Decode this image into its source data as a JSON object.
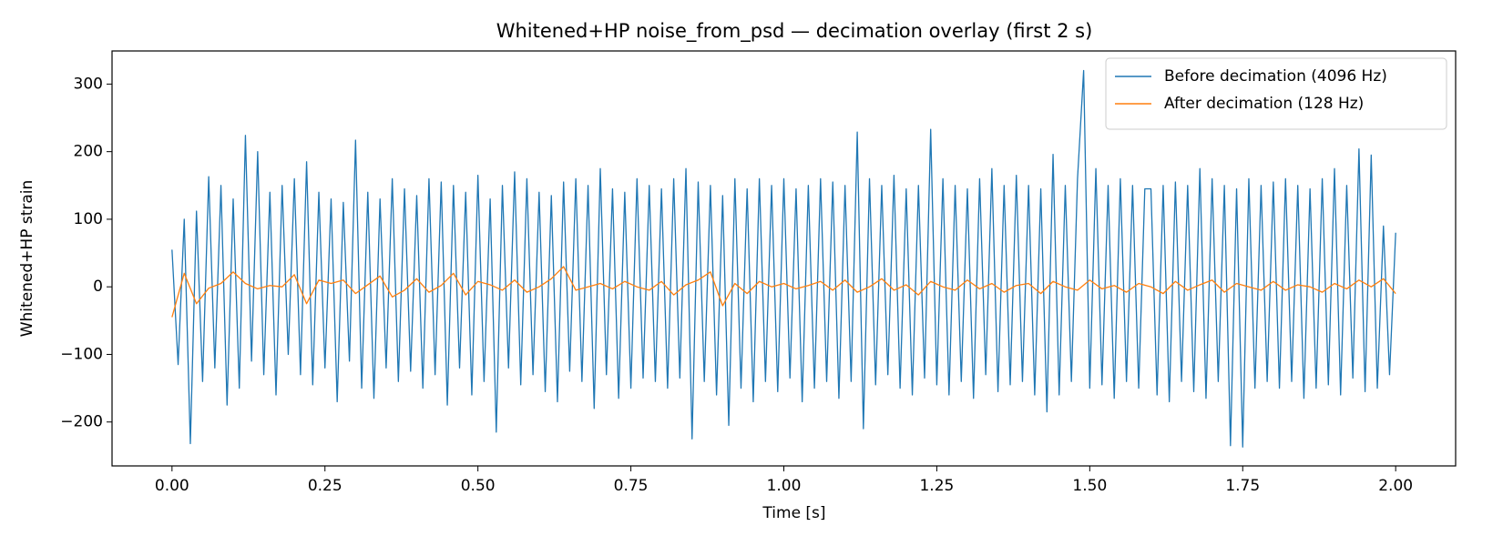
{
  "chart_data": {
    "type": "line",
    "title": "Whitened+HP noise_from_psd — decimation overlay (first 2 s)",
    "xlabel": "Time [s]",
    "ylabel": "Whitened+HP strain",
    "xlim": [
      -0.098,
      2.098
    ],
    "ylim": [
      -265,
      349
    ],
    "xticks": [
      {
        "value": 0,
        "label": "0.00"
      },
      {
        "value": 0.25,
        "label": "0.25"
      },
      {
        "value": 0.5,
        "label": "0.50"
      },
      {
        "value": 0.75,
        "label": "0.75"
      },
      {
        "value": 1,
        "label": "1.00"
      },
      {
        "value": 1.25,
        "label": "1.25"
      },
      {
        "value": 1.5,
        "label": "1.50"
      },
      {
        "value": 1.75,
        "label": "1.75"
      },
      {
        "value": 2,
        "label": "2.00"
      }
    ],
    "yticks": [
      {
        "value": -200,
        "label": "−200"
      },
      {
        "value": -100,
        "label": "−100"
      },
      0,
      100,
      200,
      300
    ],
    "grid": false,
    "legend": "upper right",
    "series": [
      {
        "name": "Before decimation (4096 Hz)",
        "color": "#1f77b4",
        "x": [
          0,
          0.01,
          0.02,
          0.03,
          0.04,
          0.05,
          0.06,
          0.07,
          0.08,
          0.09,
          0.1,
          0.11,
          0.12,
          0.13,
          0.14,
          0.15,
          0.16,
          0.17,
          0.18,
          0.19,
          0.2,
          0.21,
          0.22,
          0.23,
          0.24,
          0.25,
          0.26,
          0.27,
          0.28,
          0.29,
          0.3,
          0.31,
          0.32,
          0.33,
          0.34,
          0.35,
          0.36,
          0.37,
          0.38,
          0.39,
          0.4,
          0.41,
          0.42,
          0.43,
          0.44,
          0.45,
          0.46,
          0.47,
          0.48,
          0.49,
          0.5,
          0.51,
          0.52,
          0.53,
          0.54,
          0.55,
          0.56,
          0.57,
          0.58,
          0.59,
          0.6,
          0.61,
          0.62,
          0.63,
          0.64,
          0.65,
          0.66,
          0.67,
          0.68,
          0.69,
          0.7,
          0.71,
          0.72,
          0.73,
          0.74,
          0.75,
          0.76,
          0.77,
          0.78,
          0.79,
          0.8,
          0.81,
          0.82,
          0.83,
          0.84,
          0.85,
          0.86,
          0.87,
          0.88,
          0.89,
          0.9,
          0.91,
          0.92,
          0.93,
          0.94,
          0.95,
          0.96,
          0.97,
          0.98,
          0.99,
          1,
          1.01,
          1.02,
          1.03,
          1.04,
          1.05,
          1.06,
          1.07,
          1.08,
          1.09,
          1.1,
          1.11,
          1.12,
          1.13,
          1.14,
          1.15,
          1.16,
          1.17,
          1.18,
          1.19,
          1.2,
          1.21,
          1.22,
          1.23,
          1.24,
          1.25,
          1.26,
          1.27,
          1.28,
          1.29,
          1.3,
          1.31,
          1.32,
          1.33,
          1.34,
          1.35,
          1.36,
          1.37,
          1.38,
          1.39,
          1.4,
          1.41,
          1.42,
          1.43,
          1.44,
          1.45,
          1.46,
          1.47,
          1.48,
          1.49,
          1.5,
          1.51,
          1.52,
          1.53,
          1.54,
          1.55,
          1.56,
          1.57,
          1.58,
          1.59,
          1.6,
          1.61,
          1.62,
          1.63,
          1.64,
          1.65,
          1.66,
          1.67,
          1.68,
          1.69,
          1.7,
          1.71,
          1.72,
          1.73,
          1.74,
          1.75,
          1.76,
          1.77,
          1.78,
          1.79,
          1.8,
          1.81,
          1.82,
          1.83,
          1.84,
          1.85,
          1.86,
          1.87,
          1.88,
          1.89,
          1.9,
          1.91,
          1.92,
          1.93,
          1.94,
          1.95,
          1.96,
          1.97,
          1.98,
          1.99,
          2
        ],
        "values": [
          55,
          -115,
          100,
          -232,
          112,
          -140,
          163,
          -120,
          150,
          -175,
          130,
          -150,
          224,
          -110,
          200,
          -130,
          140,
          -160,
          150,
          -100,
          160,
          -130,
          185,
          -145,
          140,
          -120,
          130,
          -170,
          125,
          -110,
          217,
          -150,
          140,
          -165,
          130,
          -120,
          160,
          -140,
          145,
          -125,
          135,
          -150,
          160,
          -130,
          155,
          -175,
          150,
          -120,
          140,
          -160,
          165,
          -140,
          130,
          -215,
          150,
          -120,
          170,
          -145,
          160,
          -130,
          140,
          -155,
          135,
          -170,
          155,
          -125,
          160,
          -140,
          150,
          -180,
          175,
          -130,
          145,
          -165,
          140,
          -150,
          160,
          -135,
          150,
          -140,
          145,
          -150,
          160,
          -135,
          175,
          -225,
          155,
          -140,
          150,
          -160,
          135,
          -205,
          160,
          -150,
          145,
          -170,
          160,
          -140,
          150,
          -155,
          160,
          -135,
          145,
          -170,
          150,
          -150,
          160,
          -140,
          155,
          -165,
          150,
          -140,
          229,
          -210,
          160,
          -145,
          150,
          -130,
          165,
          -150,
          145,
          -160,
          150,
          -135,
          233,
          -145,
          160,
          -160,
          150,
          -140,
          145,
          -165,
          160,
          -130,
          175,
          -155,
          150,
          -145,
          165,
          -140,
          150,
          -160,
          145,
          -185,
          196,
          -160,
          150,
          -140,
          160,
          320,
          -150,
          175,
          -145,
          150,
          -165,
          160,
          -140,
          150,
          -150,
          145,
          145,
          -160,
          150,
          -170,
          155,
          -140,
          150,
          -155,
          175,
          -165,
          160,
          -140,
          150,
          -235,
          145,
          -237,
          160,
          -150,
          150,
          -140,
          155,
          -150,
          160,
          -140,
          150,
          -165,
          145,
          -150,
          160,
          -145,
          175,
          -160,
          150,
          -135,
          204,
          -155,
          195,
          -150,
          90,
          -130,
          80
        ]
      },
      {
        "name": "After decimation (128 Hz)",
        "color": "#ff7f0e",
        "x": [
          0,
          0.02,
          0.04,
          0.06,
          0.08,
          0.1,
          0.12,
          0.14,
          0.16,
          0.18,
          0.2,
          0.22,
          0.24,
          0.26,
          0.28,
          0.3,
          0.32,
          0.34,
          0.36,
          0.38,
          0.4,
          0.42,
          0.44,
          0.46,
          0.48,
          0.5,
          0.52,
          0.54,
          0.56,
          0.58,
          0.6,
          0.62,
          0.64,
          0.66,
          0.68,
          0.7,
          0.72,
          0.74,
          0.76,
          0.78,
          0.8,
          0.82,
          0.84,
          0.86,
          0.88,
          0.9,
          0.92,
          0.94,
          0.96,
          0.98,
          1,
          1.02,
          1.04,
          1.06,
          1.08,
          1.1,
          1.12,
          1.14,
          1.16,
          1.18,
          1.2,
          1.22,
          1.24,
          1.26,
          1.28,
          1.3,
          1.32,
          1.34,
          1.36,
          1.38,
          1.4,
          1.42,
          1.44,
          1.46,
          1.48,
          1.5,
          1.52,
          1.54,
          1.56,
          1.58,
          1.6,
          1.62,
          1.64,
          1.66,
          1.68,
          1.7,
          1.72,
          1.74,
          1.76,
          1.78,
          1.8,
          1.82,
          1.84,
          1.86,
          1.88,
          1.9,
          1.92,
          1.94,
          1.96,
          1.98,
          2
        ],
        "values": [
          -45,
          20,
          -25,
          -2,
          5,
          22,
          5,
          -3,
          2,
          0,
          18,
          -25,
          10,
          5,
          10,
          -10,
          3,
          16,
          -15,
          -5,
          12,
          -8,
          2,
          20,
          -12,
          8,
          3,
          -5,
          10,
          -8,
          0,
          12,
          30,
          -5,
          0,
          5,
          -3,
          8,
          0,
          -5,
          8,
          -12,
          3,
          10,
          22,
          -28,
          5,
          -10,
          8,
          0,
          5,
          -3,
          2,
          8,
          -5,
          10,
          -8,
          0,
          12,
          -5,
          3,
          -12,
          8,
          0,
          -5,
          10,
          -3,
          5,
          -8,
          2,
          5,
          -10,
          8,
          0,
          -5,
          10,
          -3,
          2,
          -8,
          5,
          0,
          -10,
          8,
          -5,
          3,
          10,
          -8,
          5,
          0,
          -5,
          8,
          -5,
          3,
          0,
          -8,
          5,
          -3,
          10,
          0,
          12,
          -10
        ]
      }
    ]
  }
}
